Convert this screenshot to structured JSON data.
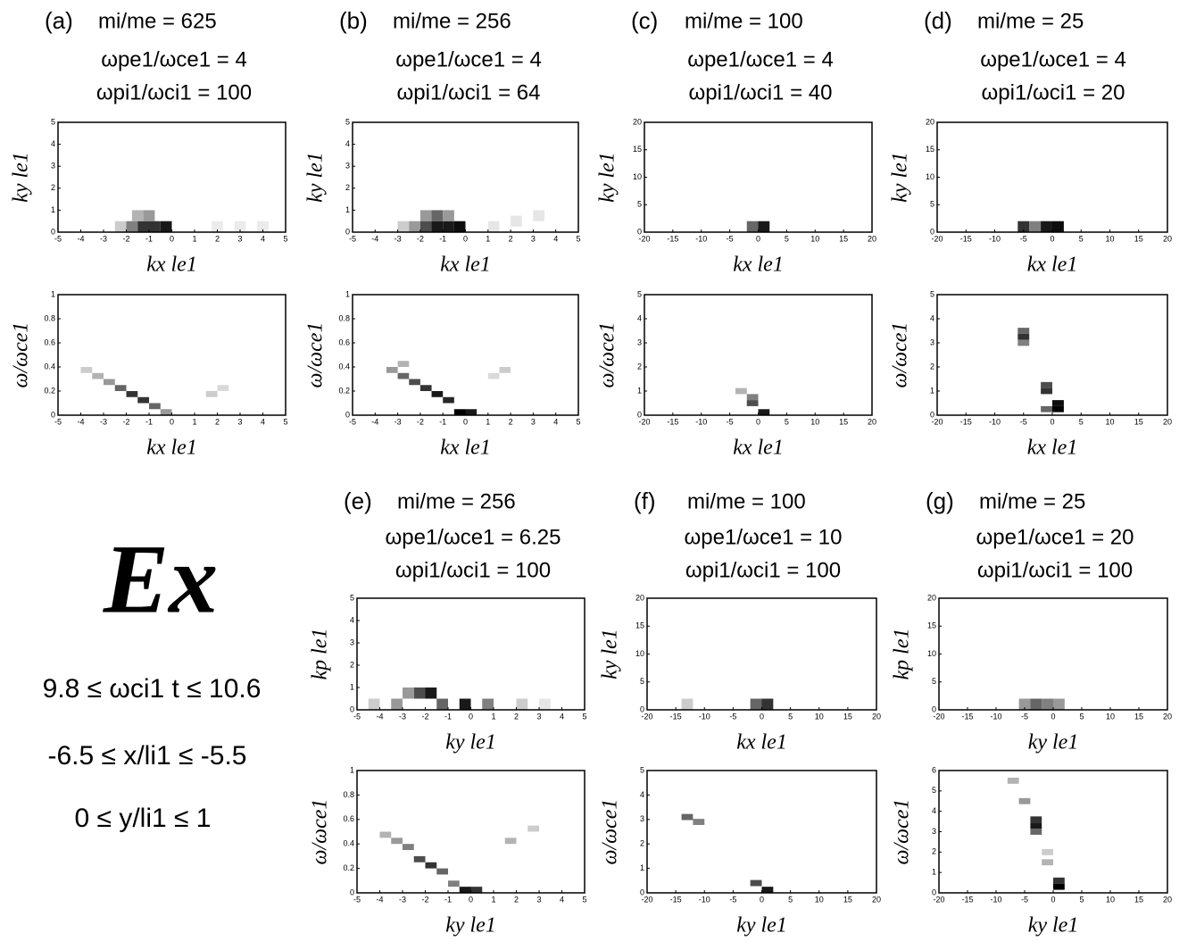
{
  "annotations": {
    "big": "Ex",
    "lines": [
      "9.8 ≤ ωci1 t ≤ 10.6",
      "-6.5 ≤ x/li1 ≤ -5.5",
      "0 ≤ y/li1 ≤ 1"
    ]
  },
  "chart_data": [
    {
      "type": "heatmap",
      "label": "(a)",
      "subtitle": [
        "mi/me = 625",
        "ωpe1/ωce1 = 4",
        "ωpi1/ωci1 = 100"
      ],
      "xlabel": "kx le1",
      "ylabel": "ky le1",
      "xlim": [
        -5,
        5
      ],
      "ylim": [
        0,
        5
      ],
      "xticks": [
        -5,
        -4,
        -3,
        -2,
        -1,
        0,
        1,
        2,
        3,
        4,
        5
      ],
      "yticks": [
        0,
        1,
        2,
        3,
        4,
        5
      ],
      "x": [
        -2.25,
        -1.75,
        -1.25,
        -0.75,
        -0.25,
        -1.5,
        -1,
        2,
        3,
        4
      ],
      "y": [
        0.25,
        0.25,
        0.25,
        0.25,
        0.25,
        0.75,
        0.75,
        0.25,
        0.25,
        0.25
      ],
      "values": [
        0.2,
        0.5,
        0.8,
        0.8,
        0.9,
        0.3,
        0.4,
        0.08,
        0.08,
        0.08
      ]
    },
    {
      "type": "heatmap",
      "xlabel": "kx le1",
      "ylabel": "ω/ωce1",
      "xlim": [
        -5,
        5
      ],
      "ylim": [
        0,
        1
      ],
      "xticks": [
        -5,
        -4,
        -3,
        -2,
        -1,
        0,
        1,
        2,
        3,
        4,
        5
      ],
      "yticks": [
        0,
        0.2,
        0.4,
        0.6,
        0.8,
        1
      ],
      "x": [
        -3.75,
        -3.25,
        -2.75,
        -2.25,
        -1.75,
        -1.25,
        -0.75,
        -0.25,
        1.75,
        2.25
      ],
      "y": [
        0.375,
        0.325,
        0.275,
        0.225,
        0.175,
        0.125,
        0.075,
        0.025,
        0.175,
        0.225
      ],
      "values": [
        0.2,
        0.3,
        0.4,
        0.6,
        0.8,
        0.8,
        0.6,
        0.4,
        0.2,
        0.15
      ]
    },
    {
      "type": "heatmap",
      "label": "(b)",
      "subtitle": [
        "mi/me = 256",
        "ωpe1/ωce1 = 4",
        "ωpi1/ωci1 = 64"
      ],
      "xlabel": "kx le1",
      "ylabel": "ky le1",
      "xlim": [
        -5,
        5
      ],
      "ylim": [
        0,
        5
      ],
      "xticks": [
        -5,
        -4,
        -3,
        -2,
        -1,
        0,
        1,
        2,
        3,
        4,
        5
      ],
      "yticks": [
        0,
        1,
        2,
        3,
        4,
        5
      ],
      "x": [
        -2.75,
        -2.25,
        -1.75,
        -1.25,
        -0.75,
        -0.25,
        -1.75,
        -1.25,
        -0.75,
        1.25,
        2.25,
        3.25
      ],
      "y": [
        0.25,
        0.25,
        0.25,
        0.25,
        0.25,
        0.25,
        0.75,
        0.75,
        0.75,
        0.25,
        0.5,
        0.75
      ],
      "values": [
        0.2,
        0.4,
        0.7,
        0.9,
        0.9,
        0.95,
        0.4,
        0.6,
        0.4,
        0.1,
        0.1,
        0.1
      ]
    },
    {
      "type": "heatmap",
      "xlabel": "kx le1",
      "ylabel": "ω/ωce1",
      "xlim": [
        -5,
        5
      ],
      "ylim": [
        0,
        1
      ],
      "xticks": [
        -5,
        -4,
        -3,
        -2,
        -1,
        0,
        1,
        2,
        3,
        4,
        5
      ],
      "yticks": [
        0,
        0.2,
        0.4,
        0.6,
        0.8,
        1
      ],
      "x": [
        -3.25,
        -2.75,
        -2.25,
        -1.75,
        -1.25,
        -0.75,
        -0.25,
        0.25,
        -2.75,
        1.75,
        1.25
      ],
      "y": [
        0.375,
        0.325,
        0.275,
        0.225,
        0.175,
        0.125,
        0.025,
        0.025,
        0.425,
        0.375,
        0.325
      ],
      "values": [
        0.4,
        0.6,
        0.7,
        0.8,
        0.9,
        0.85,
        1,
        0.9,
        0.3,
        0.2,
        0.15
      ]
    },
    {
      "type": "heatmap",
      "label": "(c)",
      "subtitle": [
        "mi/me = 100",
        "ωpe1/ωce1 = 4",
        "ωpi1/ωci1 = 40"
      ],
      "xlabel": "kx le1",
      "ylabel": "ky le1",
      "xlim": [
        -20,
        20
      ],
      "ylim": [
        0,
        20
      ],
      "xticks": [
        -20,
        -15,
        -10,
        -5,
        0,
        5,
        10,
        15,
        20
      ],
      "yticks": [
        0,
        5,
        10,
        15,
        20
      ],
      "x": [
        -1,
        1
      ],
      "y": [
        1,
        1
      ],
      "values": [
        0.6,
        0.9
      ]
    },
    {
      "type": "heatmap",
      "xlabel": "kx le1",
      "ylabel": "ω/ωce1",
      "xlim": [
        -20,
        20
      ],
      "ylim": [
        0,
        5
      ],
      "xticks": [
        -20,
        -15,
        -10,
        -5,
        0,
        5,
        10,
        15,
        20
      ],
      "yticks": [
        0,
        1,
        2,
        3,
        4,
        5
      ],
      "x": [
        -1,
        -1,
        1,
        -3
      ],
      "y": [
        0.75,
        0.5,
        0.125,
        1
      ],
      "values": [
        0.5,
        0.7,
        0.9,
        0.3
      ]
    },
    {
      "type": "heatmap",
      "label": "(d)",
      "subtitle": [
        "mi/me = 25",
        "ωpe1/ωce1 = 4",
        "ωpi1/ωci1 = 20"
      ],
      "xlabel": "kx le1",
      "ylabel": "ky le1",
      "xlim": [
        -20,
        20
      ],
      "ylim": [
        0,
        20
      ],
      "xticks": [
        -20,
        -15,
        -10,
        -5,
        0,
        5,
        10,
        15,
        20
      ],
      "yticks": [
        0,
        5,
        10,
        15,
        20
      ],
      "x": [
        -5,
        -3,
        -1,
        1
      ],
      "y": [
        1,
        1,
        1,
        1
      ],
      "values": [
        0.8,
        0.5,
        0.9,
        0.95
      ]
    },
    {
      "type": "heatmap",
      "xlabel": "kx le1",
      "ylabel": "ω/ωce1",
      "xlim": [
        -20,
        20
      ],
      "ylim": [
        0,
        5
      ],
      "xticks": [
        -20,
        -15,
        -10,
        -5,
        0,
        5,
        10,
        15,
        20
      ],
      "yticks": [
        0,
        1,
        2,
        3,
        4,
        5
      ],
      "x": [
        -5,
        -5,
        -5,
        -1,
        -1,
        1,
        1,
        -1
      ],
      "y": [
        3.5,
        3.25,
        3,
        1.25,
        1,
        0.5,
        0.25,
        0.25
      ],
      "values": [
        0.6,
        0.8,
        0.5,
        0.7,
        0.8,
        0.95,
        1,
        0.6
      ]
    },
    {
      "type": "heatmap",
      "label": "(e)",
      "subtitle": [
        "mi/me = 256",
        "ωpe1/ωce1 = 6.25",
        "ωpi1/ωci1 = 100"
      ],
      "xlabel": "ky le1",
      "ylabel": "kp le1",
      "xlim": [
        -5,
        5
      ],
      "ylim": [
        0,
        5
      ],
      "xticks": [
        -5,
        -4,
        -3,
        -2,
        -1,
        0,
        1,
        2,
        3,
        4,
        5
      ],
      "yticks": [
        0,
        1,
        2,
        3,
        4,
        5
      ],
      "x": [
        -4.25,
        -3.25,
        -2.25,
        -1.75,
        -1.25,
        -0.25,
        0.75,
        2.25,
        3.25,
        -2.75
      ],
      "y": [
        0.25,
        0.25,
        0.75,
        0.75,
        0.25,
        0.25,
        0.25,
        0.25,
        0.25,
        0.75
      ],
      "values": [
        0.2,
        0.4,
        0.7,
        0.9,
        0.6,
        0.9,
        0.5,
        0.2,
        0.1,
        0.4
      ]
    },
    {
      "type": "heatmap",
      "xlabel": "ky le1",
      "ylabel": "ω/ωce1",
      "xlim": [
        -5,
        5
      ],
      "ylim": [
        0,
        1
      ],
      "xticks": [
        -5,
        -4,
        -3,
        -2,
        -1,
        0,
        1,
        2,
        3,
        4,
        5
      ],
      "yticks": [
        0,
        0.2,
        0.4,
        0.6,
        0.8,
        1
      ],
      "x": [
        -3.75,
        -3.25,
        -2.75,
        -2.25,
        -1.75,
        -1.25,
        -0.75,
        -0.25,
        0.25,
        1.75,
        2.75
      ],
      "y": [
        0.475,
        0.425,
        0.375,
        0.275,
        0.225,
        0.175,
        0.075,
        0.025,
        0.025,
        0.425,
        0.525
      ],
      "values": [
        0.3,
        0.4,
        0.5,
        0.7,
        0.8,
        0.6,
        0.5,
        0.9,
        0.8,
        0.3,
        0.2
      ]
    },
    {
      "type": "heatmap",
      "label": "(f)",
      "subtitle": [
        "mi/me = 100",
        "ωpe1/ωce1 = 10",
        "ωpi1/ωci1 = 100"
      ],
      "xlabel": "kx le1",
      "ylabel": "ky le1",
      "xlim": [
        -20,
        20
      ],
      "ylim": [
        0,
        20
      ],
      "xticks": [
        -20,
        -15,
        -10,
        -5,
        0,
        5,
        10,
        15,
        20
      ],
      "yticks": [
        0,
        5,
        10,
        15,
        20
      ],
      "x": [
        -13,
        -1,
        1
      ],
      "y": [
        1,
        1,
        1
      ],
      "values": [
        0.2,
        0.6,
        0.8
      ]
    },
    {
      "type": "heatmap",
      "xlabel": "ky le1",
      "ylabel": "ω/ωce1",
      "xlim": [
        -20,
        20
      ],
      "ylim": [
        0,
        5
      ],
      "xticks": [
        -20,
        -15,
        -10,
        -5,
        0,
        5,
        10,
        15,
        20
      ],
      "yticks": [
        0,
        1,
        2,
        3,
        4,
        5
      ],
      "x": [
        -13,
        -11,
        -1,
        1
      ],
      "y": [
        3.1,
        2.9,
        0.4,
        0.125
      ],
      "values": [
        0.6,
        0.5,
        0.7,
        0.9
      ]
    },
    {
      "type": "heatmap",
      "label": "(g)",
      "subtitle": [
        "mi/me = 25",
        "ωpe1/ωce1 = 20",
        "ωpi1/ωci1 = 100"
      ],
      "xlabel": "ky le1",
      "ylabel": "kp le1",
      "xlim": [
        -20,
        20
      ],
      "ylim": [
        0,
        20
      ],
      "xticks": [
        -20,
        -15,
        -10,
        -5,
        0,
        5,
        10,
        15,
        20
      ],
      "yticks": [
        0,
        5,
        10,
        15,
        20
      ],
      "x": [
        -5,
        -3,
        -1,
        1
      ],
      "y": [
        1,
        1,
        1,
        1
      ],
      "values": [
        0.4,
        0.6,
        0.5,
        0.4
      ]
    },
    {
      "type": "heatmap",
      "xlabel": "ky le1",
      "ylabel": "ω/ωce1",
      "xlim": [
        -20,
        20
      ],
      "ylim": [
        0,
        6
      ],
      "xticks": [
        -20,
        -15,
        -10,
        -5,
        0,
        5,
        10,
        15,
        20
      ],
      "yticks": [
        0,
        1,
        2,
        3,
        4,
        5,
        6
      ],
      "x": [
        -7,
        -5,
        -3,
        -3,
        -3,
        -1,
        1,
        1,
        -1
      ],
      "y": [
        5.5,
        4.5,
        3.6,
        3.3,
        3,
        1.5,
        0.6,
        0.3,
        2
      ],
      "values": [
        0.3,
        0.4,
        0.8,
        0.9,
        0.6,
        0.3,
        0.8,
        1,
        0.2
      ]
    }
  ]
}
